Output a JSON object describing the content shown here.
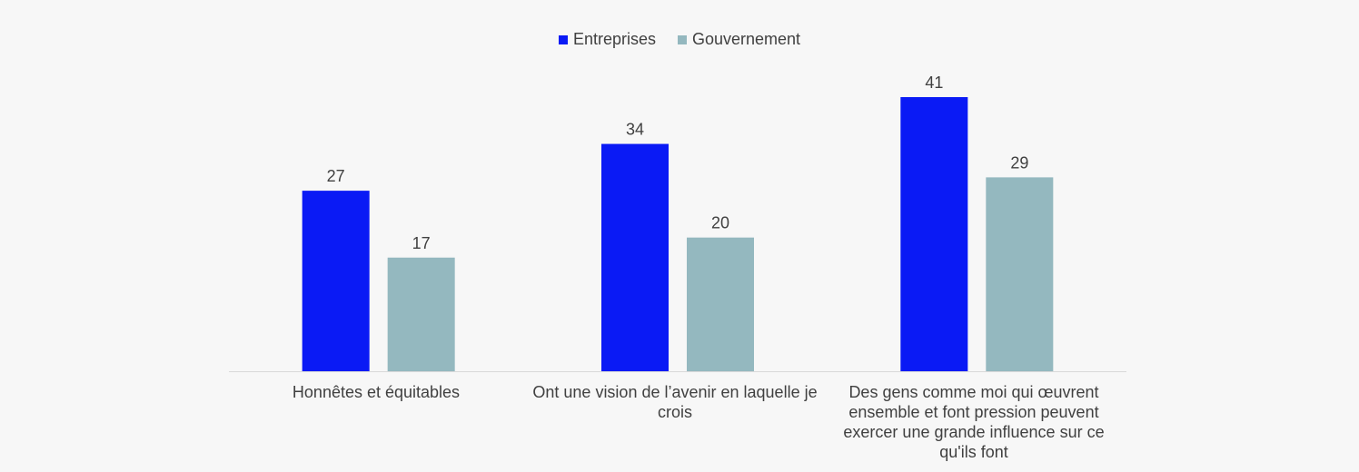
{
  "chart_data": {
    "type": "bar",
    "categories": [
      "Honnêtes et équitables",
      "Ont une vision de l’avenir en laquelle je crois",
      "Des gens comme moi qui œuvrent ensemble et font pression peuvent exercer une grande influence sur ce qu'ils font"
    ],
    "series": [
      {
        "name": "Entreprises",
        "values": [
          27,
          34,
          41
        ],
        "color": "#0a1af5"
      },
      {
        "name": "Gouvernement",
        "values": [
          17,
          20,
          29
        ],
        "color": "#94b8bf"
      }
    ],
    "title": "",
    "xlabel": "",
    "ylabel": "",
    "ylim": [
      0,
      41
    ],
    "grid": false,
    "legend_position": "top-center",
    "data_labels": true
  }
}
